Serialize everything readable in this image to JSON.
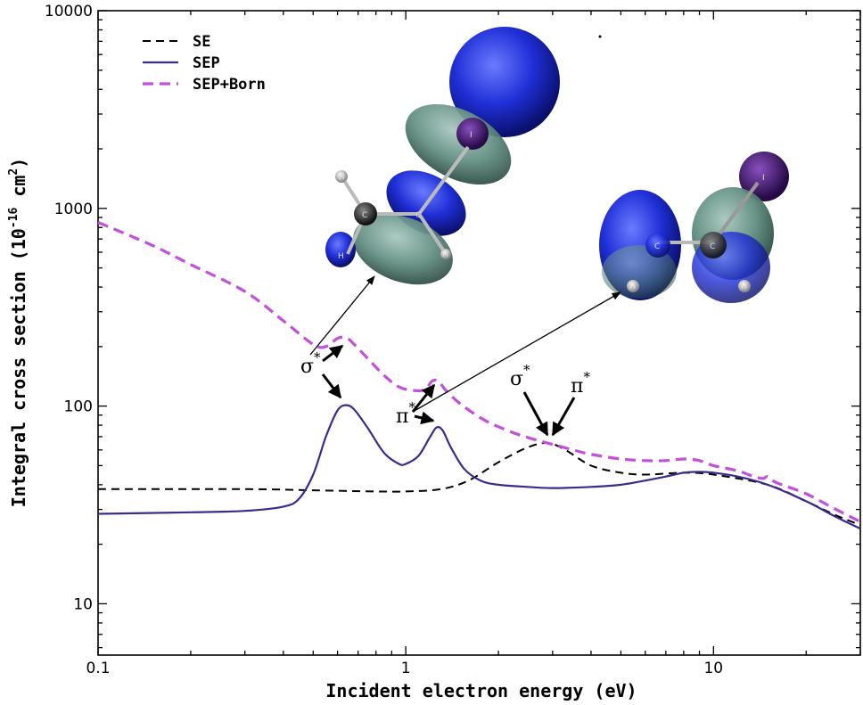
{
  "chart_data": {
    "type": "line",
    "xscale": "log",
    "yscale": "log",
    "xlim": [
      0.1,
      30
    ],
    "ylim": [
      5.5,
      10000
    ],
    "xlabel": "Incident electron energy (eV)",
    "ylabel": "Integral cross section (10",
    "ylabel_exp1": "-16",
    "ylabel_unit": " cm",
    "ylabel_exp2": "2",
    "ylabel_close": ")",
    "x_ticks": [
      0.1,
      1,
      10
    ],
    "x_tick_labels": [
      "0.1",
      "1",
      "10"
    ],
    "y_ticks": [
      10,
      100,
      1000,
      10000
    ],
    "y_tick_labels": [
      "10",
      "100",
      "1000",
      "10000"
    ],
    "legend_position": "top-left",
    "series": [
      {
        "name": "SE",
        "style": "dashed",
        "color": "#000000",
        "x": [
          0.1,
          0.3,
          0.5,
          0.8,
          1.0,
          1.3,
          1.6,
          2.0,
          2.5,
          2.9,
          3.3,
          4.0,
          5.0,
          6.0,
          8.0,
          10.0,
          15.0,
          20.0,
          25.0,
          30.0
        ],
        "y": [
          38,
          38,
          37.5,
          37,
          37,
          38,
          42,
          52,
          62,
          65,
          60,
          50,
          46,
          45,
          46,
          45,
          40,
          33,
          28,
          25
        ]
      },
      {
        "name": "SEP",
        "style": "solid",
        "color": "#3d2a8c",
        "x": [
          0.1,
          0.2,
          0.3,
          0.4,
          0.45,
          0.5,
          0.55,
          0.6,
          0.64,
          0.68,
          0.75,
          0.85,
          0.95,
          1.0,
          1.1,
          1.2,
          1.26,
          1.32,
          1.4,
          1.55,
          1.75,
          2.0,
          2.5,
          3.0,
          4.0,
          5.0,
          6.0,
          7.0,
          8.0,
          9.0,
          10.0,
          12.0,
          15.0,
          20.0,
          25.0,
          30.0
        ],
        "y": [
          28.5,
          29,
          29.5,
          31,
          34,
          45,
          70,
          95,
          101,
          96,
          78,
          58,
          51,
          51,
          56,
          70,
          78,
          75,
          62,
          48,
          42,
          40,
          39,
          38.5,
          39,
          40,
          42,
          44,
          46,
          46.5,
          46,
          44,
          40,
          33,
          27.5,
          24
        ]
      },
      {
        "name": "SEP+Born",
        "style": "dashed",
        "color": "#c34fdc",
        "x": [
          0.1,
          0.15,
          0.2,
          0.3,
          0.4,
          0.5,
          0.55,
          0.6,
          0.64,
          0.68,
          0.75,
          0.85,
          0.95,
          1.05,
          1.15,
          1.22,
          1.28,
          1.35,
          1.5,
          1.8,
          2.2,
          2.6,
          3.0,
          3.5,
          4.0,
          5.0,
          6.0,
          7.0,
          8.0,
          9.0,
          10.0,
          12.0,
          13.5,
          14.5,
          15.0,
          16.0,
          20.0,
          25.0,
          30.0
        ],
        "y": [
          850,
          650,
          520,
          380,
          270,
          205,
          200,
          220,
          222,
          205,
          175,
          143,
          125,
          120,
          121,
          134,
          133,
          120,
          103,
          85,
          74,
          68,
          64,
          60,
          57,
          54,
          53,
          53,
          54,
          53,
          50,
          47,
          44,
          43,
          44,
          41,
          36,
          30,
          26
        ]
      }
    ],
    "annotations": [
      {
        "label": "σ",
        "sup": "*"
      },
      {
        "label": "π",
        "sup": "*"
      },
      {
        "label": "σ",
        "sup": "*"
      },
      {
        "label": "π",
        "sup": "*"
      }
    ],
    "atom_labels": [
      "H",
      "C",
      "I",
      "C",
      "H",
      "H",
      "I",
      "C",
      "C",
      "H",
      "H"
    ]
  }
}
